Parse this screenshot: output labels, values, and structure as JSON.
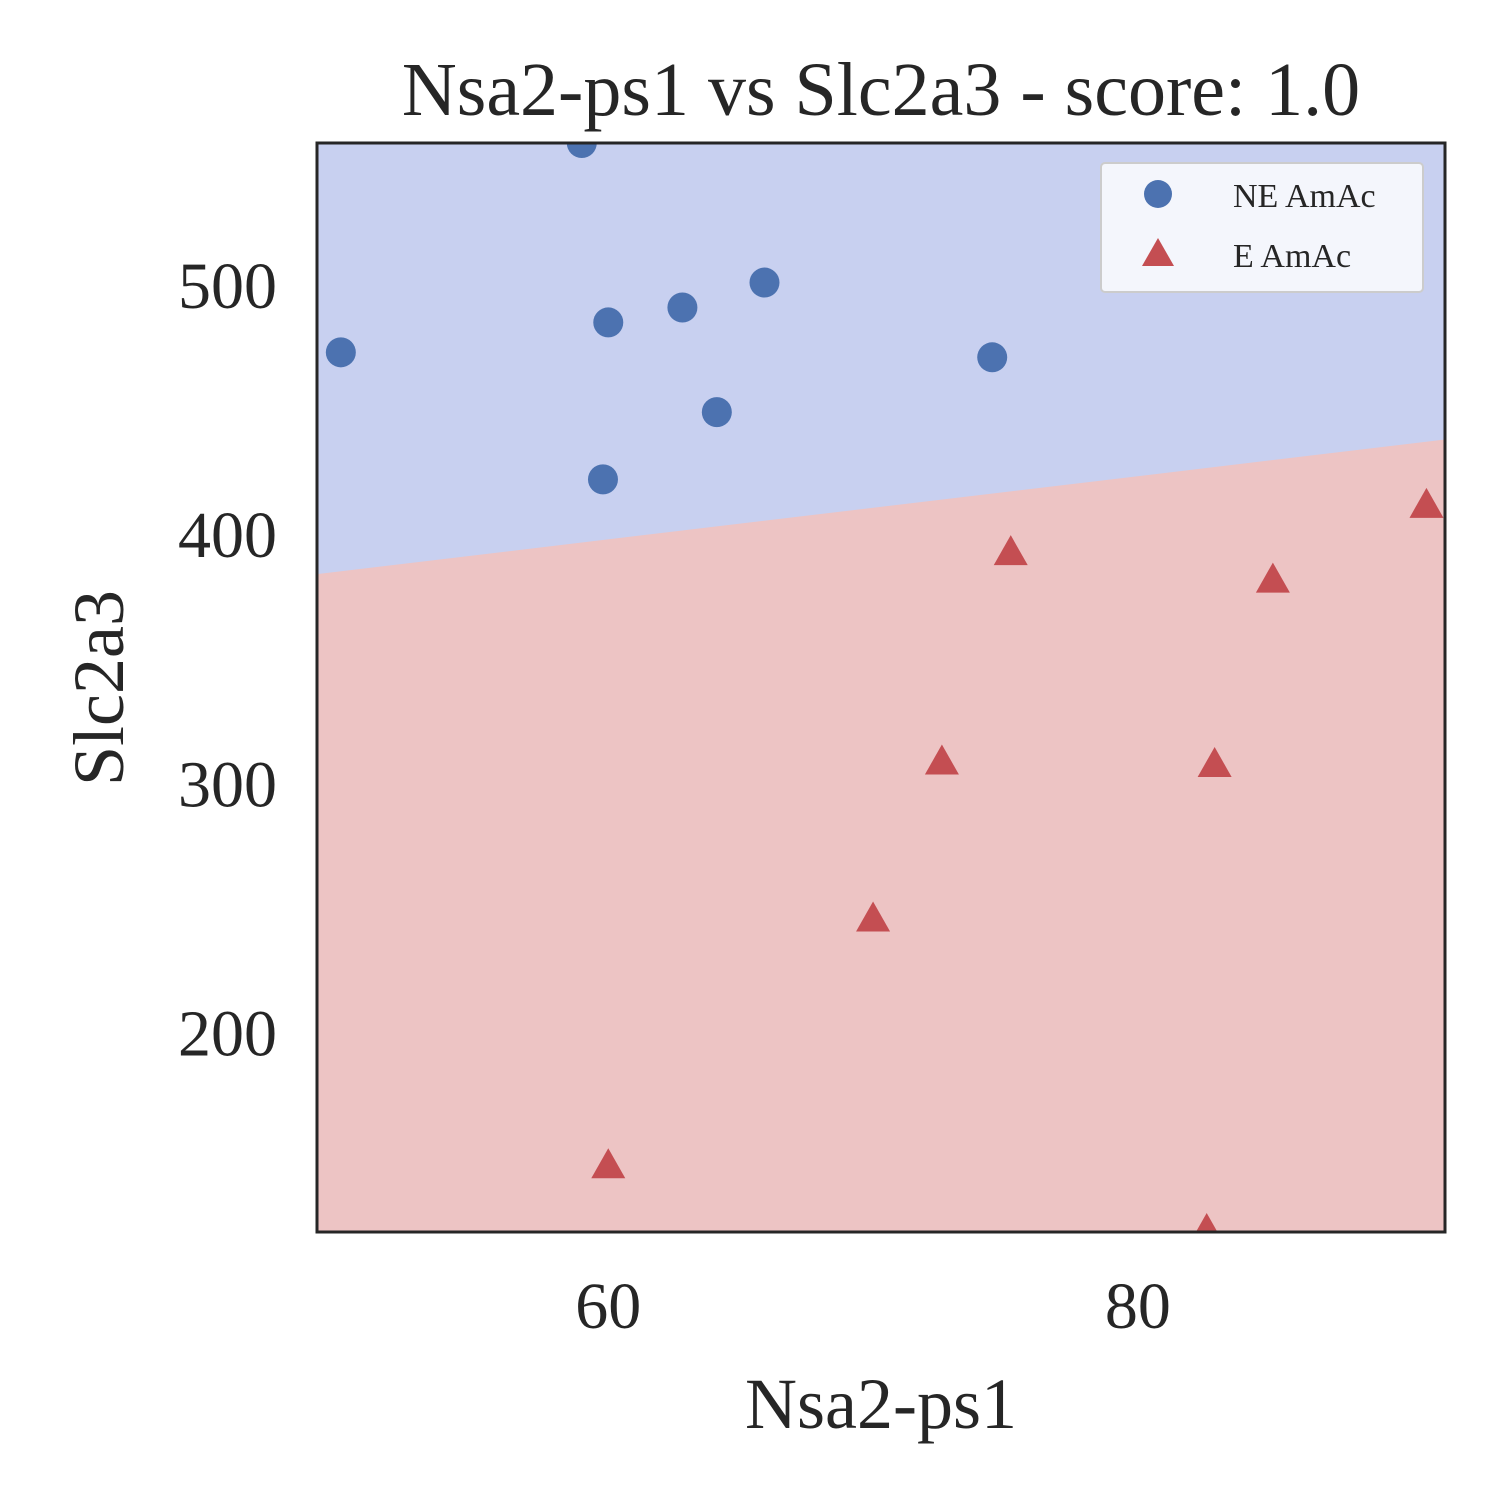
{
  "chart_data": {
    "type": "scatter",
    "title": "Nsa2-ps1 vs Slc2a3 - score: 1.0",
    "xlabel": "Nsa2-ps1",
    "ylabel": "Slc2a3",
    "xlim": [
      49.0,
      91.6
    ],
    "ylim": [
      120,
      557
    ],
    "xticks": [
      60,
      80
    ],
    "yticks": [
      200,
      300,
      400,
      500
    ],
    "grid": false,
    "legend_position": "top-right",
    "decision_boundary": {
      "description": "linear",
      "points": [
        [
          49.0,
          384
        ],
        [
          91.6,
          438
        ]
      ],
      "upper_region_class": "NE AmAc",
      "lower_region_class": "E AmAc"
    },
    "colors": {
      "ne_marker": "#4C72B0",
      "e_marker": "#C44E52",
      "ne_region": "#C8D0F0",
      "e_region": "#EDC4C4",
      "axes_edge": "#262626"
    },
    "series": [
      {
        "name": "NE AmAc",
        "marker": "circle",
        "points": [
          [
            49.9,
            473
          ],
          [
            59.0,
            557
          ],
          [
            60.0,
            485
          ],
          [
            62.8,
            491
          ],
          [
            64.1,
            449
          ],
          [
            65.9,
            501
          ],
          [
            74.5,
            471
          ],
          [
            59.8,
            422
          ]
        ]
      },
      {
        "name": "E AmAc",
        "marker": "triangle",
        "points": [
          [
            60.0,
            146
          ],
          [
            70.0,
            245
          ],
          [
            72.6,
            308
          ],
          [
            75.2,
            392
          ],
          [
            82.9,
            307
          ],
          [
            85.1,
            381
          ],
          [
            90.9,
            411
          ],
          [
            82.6,
            120
          ]
        ]
      }
    ]
  }
}
